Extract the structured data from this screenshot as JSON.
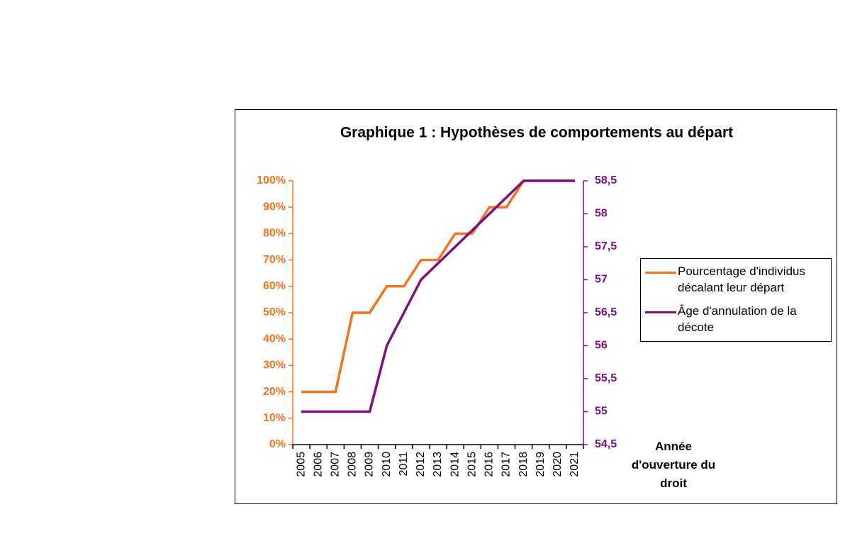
{
  "chart_data": {
    "type": "line",
    "title": "Graphique 1 : Hypothèses de comportements au départ",
    "xlabel": "Année d'ouverture du droit",
    "categories": [
      "2005",
      "2006",
      "2007",
      "2008",
      "2009",
      "2010",
      "2011",
      "2012",
      "2013",
      "2014",
      "2015",
      "2016",
      "2017",
      "2018",
      "2019",
      "2020",
      "2021"
    ],
    "series": [
      {
        "name": "Pourcentage d'individus décalant leur départ",
        "color": "#f47320",
        "axis": "y",
        "values": [
          20,
          20,
          20,
          50,
          50,
          60,
          60,
          70,
          70,
          80,
          80,
          90,
          90,
          100,
          100,
          100,
          100
        ]
      },
      {
        "name": "Âge d'annulation de la décote",
        "color": "#7f0f7e",
        "axis": "y2",
        "values": [
          55,
          55,
          55,
          55,
          55,
          56,
          56.5,
          57,
          57.25,
          57.5,
          57.75,
          58,
          58.25,
          58.5,
          58.5,
          58.5,
          58.5
        ]
      }
    ],
    "ylim": [
      0,
      100
    ],
    "yticks": [
      {
        "value": 0,
        "label": "0%"
      },
      {
        "value": 10,
        "label": "10%"
      },
      {
        "value": 20,
        "label": "20%"
      },
      {
        "value": 30,
        "label": "30%"
      },
      {
        "value": 40,
        "label": "40%"
      },
      {
        "value": 50,
        "label": "50%"
      },
      {
        "value": 60,
        "label": "60%"
      },
      {
        "value": 70,
        "label": "70%"
      },
      {
        "value": 80,
        "label": "80%"
      },
      {
        "value": 90,
        "label": "90%"
      },
      {
        "value": 100,
        "label": "100%"
      }
    ],
    "y2lim": [
      54.5,
      58.5
    ],
    "y2ticks": [
      {
        "value": 54.5,
        "label": "54,5"
      },
      55,
      {
        "value": 55.5,
        "label": "55,5"
      },
      56,
      {
        "value": 56.5,
        "label": "56,5"
      },
      57,
      {
        "value": 57.5,
        "label": "57,5"
      },
      58,
      {
        "value": 58.5,
        "label": "58,5"
      }
    ],
    "grid": false,
    "legend": "right"
  }
}
